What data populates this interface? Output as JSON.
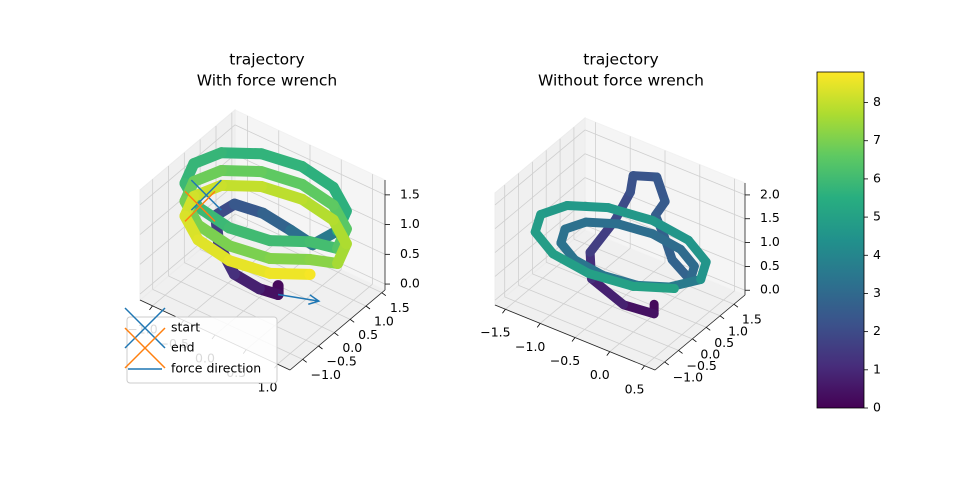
{
  "chart_data": [
    {
      "type": "line3d",
      "title": [
        "trajectory",
        "With force wrench"
      ],
      "xlim": [
        -1.2,
        1.2
      ],
      "ylim": [
        -1.4,
        1.6
      ],
      "zlim": [
        -0.1,
        1.75
      ],
      "xticks": [
        {
          "value": -1.0,
          "label": "−1.0"
        },
        {
          "value": -0.5,
          "label": "−0.5"
        },
        {
          "value": 0.0,
          "label": "0.0"
        },
        0.5,
        {
          "value": 1.0,
          "label": "1.0"
        }
      ],
      "yticks": [
        {
          "value": -1.0,
          "label": "−1.0"
        },
        {
          "value": -0.5,
          "label": "−0.5"
        },
        {
          "value": 0.0,
          "label": "0.0"
        },
        0.5,
        {
          "value": 1.0,
          "label": "1.0"
        },
        1.5
      ],
      "zticks": [
        {
          "value": 0.0,
          "label": "0.0"
        },
        0.5,
        {
          "value": 1.0,
          "label": "1.0"
        },
        1.5
      ],
      "grid": true,
      "trajectory": {
        "x": [
          0.3,
          0.3,
          0.0,
          -0.4,
          -0.7,
          -0.8,
          -0.6,
          -0.2,
          0.3,
          0.7,
          1.15,
          1.0,
          0.575,
          0,
          -0.575,
          -1.0,
          -1.15,
          -1.0,
          -0.575,
          0,
          0.575,
          1.0,
          1.15,
          1.0,
          0.575,
          0,
          -0.575,
          -1.0,
          -1.15,
          -1.0,
          -0.575,
          0,
          0.575,
          1.0,
          1.15,
          1.0,
          0.575,
          0,
          -0.575,
          -1.0,
          -1.15,
          -1.0,
          -0.575,
          0,
          0.575,
          1.0
        ],
        "y": [
          0.0,
          0.0,
          0.0,
          0.0,
          0.1,
          0.2,
          0.4,
          0.5,
          0.4,
          0.3,
          0.2,
          0.775,
          1.2,
          1.35,
          1.2,
          0.775,
          0.2,
          -0.375,
          -0.8,
          -0.95,
          -0.8,
          -0.375,
          0.2,
          0.775,
          1.2,
          1.35,
          1.2,
          0.775,
          0.2,
          -0.375,
          -0.8,
          -0.95,
          -0.8,
          -0.375,
          0.2,
          0.775,
          1.2,
          1.35,
          1.2,
          0.775,
          0.2,
          -0.375,
          -0.8,
          -0.95,
          -0.8,
          -0.375
        ],
        "z": [
          0.25,
          0.1,
          0.05,
          0.1,
          0.4,
          0.8,
          1.0,
          1.0,
          1.0,
          1.0,
          1.5,
          1.5,
          1.5,
          1.5,
          1.5,
          1.5,
          1.5,
          1.5,
          1.5,
          1.5,
          1.5,
          1.5,
          1.2,
          1.2,
          1.2,
          1.2,
          1.2,
          1.2,
          1.2,
          1.2,
          1.2,
          1.2,
          1.2,
          1.2,
          0.95,
          0.95,
          0.95,
          0.95,
          0.95,
          0.95,
          0.95,
          0.95,
          0.95,
          0.95,
          0.95,
          0.95
        ],
        "c": [
          0.2,
          0.4,
          0.8,
          1.2,
          1.6,
          2.0,
          2.4,
          2.8,
          3.2,
          3.6,
          5.5,
          5.6,
          5.6,
          5.7,
          5.7,
          5.8,
          5.8,
          5.9,
          5.9,
          6.0,
          6.0,
          6.1,
          6.4,
          6.5,
          6.6,
          6.6,
          6.7,
          6.8,
          6.8,
          6.9,
          7.0,
          7.0,
          7.1,
          7.2,
          7.6,
          7.7,
          7.8,
          7.9,
          8.0,
          8.1,
          8.2,
          8.3,
          8.4,
          8.5,
          8.6,
          8.7
        ]
      },
      "start": {
        "name": "start",
        "x": -1.0,
        "y": 0.3,
        "z": 1.0,
        "color": "#1f77b4"
      },
      "end": {
        "name": "end",
        "x": -1.0,
        "y": 0.1,
        "z": 0.9,
        "color": "#ff7f0e"
      },
      "force": {
        "name": "force direction",
        "x": 0.3,
        "y": 0.0,
        "z": 0.1,
        "dx": 0.5,
        "dy": 0.3,
        "dz": 0.0,
        "color": "#1f77b4"
      }
    },
    {
      "type": "line3d",
      "title": [
        "trajectory",
        "Without force wrench"
      ],
      "xlim": [
        -1.65,
        0.65
      ],
      "ylim": [
        -1.35,
        1.9
      ],
      "zlim": [
        -0.1,
        2.25
      ],
      "xticks": [
        {
          "value": -1.5,
          "label": "−1.5"
        },
        {
          "value": -1.0,
          "label": "−1.0"
        },
        {
          "value": -0.5,
          "label": "−0.5"
        },
        {
          "value": 0.0,
          "label": "0.0"
        },
        0.5
      ],
      "yticks": [
        {
          "value": -1.0,
          "label": "−1.0"
        },
        {
          "value": -0.5,
          "label": "−0.5"
        },
        {
          "value": 0.0,
          "label": "0.0"
        },
        0.5,
        {
          "value": 1.0,
          "label": "1.0"
        },
        1.5
      ],
      "zticks": [
        {
          "value": 0.0,
          "label": "0.0"
        },
        0.5,
        {
          "value": 1.0,
          "label": "1.0"
        },
        1.5,
        {
          "value": 2.0,
          "label": "2.0"
        }
      ],
      "grid": true,
      "trajectory": {
        "x": [
          0.1,
          0.1,
          -0.3,
          -0.8,
          -0.9,
          -0.7,
          -0.6,
          -0.6,
          -0.3,
          -0.1,
          -0.2,
          0.0,
          0.2,
          0.5,
          0.38,
          0.05,
          -0.4,
          -0.85,
          -1.18,
          -1.3,
          -1.18,
          -0.85,
          -0.4,
          0.05,
          0.38,
          0.65,
          0.5,
          0.075,
          -0.5,
          -1.075,
          -1.5,
          -1.65,
          -1.5,
          -1.075,
          -0.5,
          0.075,
          0.5
        ],
        "y": [
          0.0,
          0.0,
          -0.1,
          0.0,
          0.2,
          0.6,
          0.9,
          1.0,
          1.1,
          0.9,
          0.8,
          0.6,
          0.4,
          0.3,
          0.75,
          1.08,
          1.2,
          1.08,
          0.75,
          0.3,
          -0.15,
          -0.48,
          -0.6,
          -0.48,
          -0.15,
          0.3,
          0.875,
          1.3,
          1.45,
          1.3,
          0.875,
          0.3,
          -0.275,
          -0.7,
          -0.85,
          -0.7,
          -0.275
        ],
        "z": [
          0.3,
          0.1,
          0.1,
          0.3,
          0.7,
          1.3,
          1.8,
          2.1,
          2.2,
          1.9,
          1.6,
          1.4,
          1.1,
          0.9,
          0.9,
          0.9,
          0.9,
          0.9,
          0.9,
          0.9,
          0.9,
          0.9,
          0.9,
          0.9,
          0.9,
          1.0,
          1.0,
          1.0,
          1.0,
          1.0,
          1.0,
          1.0,
          1.0,
          1.0,
          1.0,
          1.0,
          1.0
        ],
        "c": [
          0.2,
          0.4,
          0.8,
          1.2,
          1.6,
          2.0,
          2.2,
          2.3,
          2.4,
          2.5,
          2.6,
          2.7,
          2.8,
          3.0,
          3.05,
          3.1,
          3.15,
          3.2,
          3.25,
          3.3,
          3.35,
          3.4,
          3.45,
          3.5,
          3.6,
          4.5,
          4.55,
          4.6,
          4.65,
          4.7,
          4.75,
          4.8,
          4.85,
          4.9,
          4.95,
          5.0,
          5.0
        ]
      }
    },
    {
      "type": "colorbar",
      "colormap": "viridis",
      "clim": [
        0,
        8.8
      ],
      "ticks": [
        0,
        1,
        2,
        3,
        4,
        5,
        6,
        7,
        8
      ]
    }
  ]
}
